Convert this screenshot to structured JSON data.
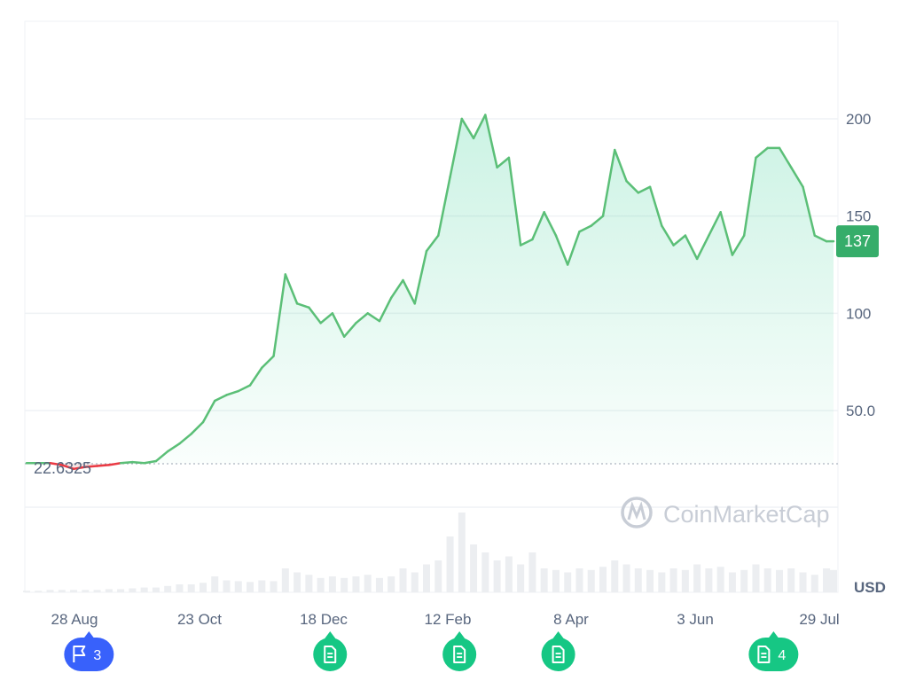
{
  "chart_data": {
    "type": "area",
    "x_tick_labels": [
      "28 Aug",
      "23 Oct",
      "18 Dec",
      "12 Feb",
      "8 Apr",
      "3 Jun",
      "29 Jul"
    ],
    "y_tick_labels": [
      "50.0",
      "100",
      "150",
      "200"
    ],
    "y_ticks": [
      50,
      100,
      150,
      200
    ],
    "ylim": [
      0,
      250
    ],
    "currency_label": "USD",
    "reference_value": 22.6325,
    "reference_label": "22.6325",
    "current_price_label": "137",
    "current_price": 137,
    "x_days": [
      0,
      5,
      10,
      15,
      20,
      25,
      30,
      35,
      40,
      45,
      50,
      55,
      60,
      65,
      70,
      75,
      80,
      85,
      90,
      95,
      100,
      105,
      110,
      115,
      120,
      125,
      130,
      135,
      140,
      145,
      150,
      155,
      160,
      165,
      170,
      175,
      180,
      185,
      190,
      195,
      200,
      205,
      210,
      215,
      220,
      225,
      230,
      235,
      240,
      245,
      250,
      255,
      260,
      265,
      270,
      275,
      280,
      285,
      290,
      295,
      300,
      305,
      310,
      315,
      320,
      325,
      330,
      335,
      340,
      343
    ],
    "values": [
      23,
      23,
      23,
      22,
      20,
      21,
      21.5,
      22,
      23,
      23.5,
      23,
      24,
      29,
      33,
      38,
      44,
      55,
      58,
      60,
      63,
      72,
      78,
      120,
      105,
      103,
      95,
      100,
      88,
      95,
      100,
      96,
      108,
      117,
      105,
      132,
      140,
      170,
      200,
      190,
      202,
      175,
      180,
      135,
      138,
      152,
      140,
      125,
      142,
      145,
      150,
      184,
      168,
      162,
      165,
      145,
      135,
      140,
      128,
      140,
      152,
      130,
      140,
      180,
      185,
      185,
      175,
      165,
      140,
      137,
      137
    ],
    "volume_relative": [
      0.02,
      0.02,
      0.03,
      0.03,
      0.03,
      0.03,
      0.03,
      0.04,
      0.04,
      0.05,
      0.06,
      0.06,
      0.08,
      0.1,
      0.1,
      0.12,
      0.2,
      0.15,
      0.14,
      0.13,
      0.15,
      0.14,
      0.3,
      0.25,
      0.22,
      0.18,
      0.2,
      0.18,
      0.2,
      0.22,
      0.18,
      0.2,
      0.3,
      0.25,
      0.35,
      0.4,
      0.7,
      1.0,
      0.6,
      0.5,
      0.4,
      0.45,
      0.35,
      0.5,
      0.3,
      0.28,
      0.25,
      0.3,
      0.28,
      0.32,
      0.4,
      0.35,
      0.3,
      0.28,
      0.25,
      0.3,
      0.28,
      0.35,
      0.3,
      0.32,
      0.25,
      0.28,
      0.35,
      0.3,
      0.28,
      0.3,
      0.25,
      0.22,
      0.3,
      0.28
    ]
  },
  "watermark": "CoinMarketCap",
  "event_markers": [
    {
      "type": "flag",
      "count": "3",
      "color": "#3861fb",
      "x_day": 25,
      "icon": "flag-icon"
    },
    {
      "type": "document",
      "count": "",
      "color": "#16c784",
      "x_day": 129,
      "icon": "document-icon"
    },
    {
      "type": "document",
      "count": "",
      "color": "#16c784",
      "x_day": 184,
      "icon": "document-icon"
    },
    {
      "type": "document",
      "count": "",
      "color": "#16c784",
      "x_day": 226,
      "icon": "document-icon"
    },
    {
      "type": "document",
      "count": "4",
      "color": "#16c784",
      "x_day": 316,
      "icon": "document-icon"
    }
  ],
  "colors": {
    "up": "#16c784",
    "down": "#ea3943",
    "line": "#5bbf77",
    "label_green": "#36ad6a",
    "grid": "#eff2f5"
  }
}
